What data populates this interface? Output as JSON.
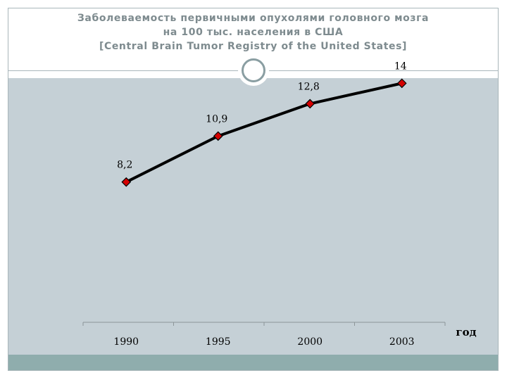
{
  "slide": {
    "title_lines": [
      "Заболеваемость первичными опухолями головного мозга",
      "на 100 тыс. населения в США",
      "[Central Brain Tumor Registry of the United States]"
    ]
  },
  "colors": {
    "title": "#7e8b8f",
    "content_bg": "#c5d0d6",
    "footer_bar": "#8fadad",
    "line": "#000000",
    "marker": "#d40000"
  },
  "chart_data": {
    "type": "line",
    "categories": [
      "1990",
      "1995",
      "2000",
      "2003"
    ],
    "series": [
      {
        "values": [
          8.2,
          10.9,
          12.8,
          14
        ]
      }
    ],
    "data_labels": [
      "8,2",
      "10,9",
      "12,8",
      "14"
    ],
    "xlabel": "год",
    "ylabel": "",
    "ylim": [
      0,
      16
    ],
    "marker": "diamond",
    "grid": false
  }
}
